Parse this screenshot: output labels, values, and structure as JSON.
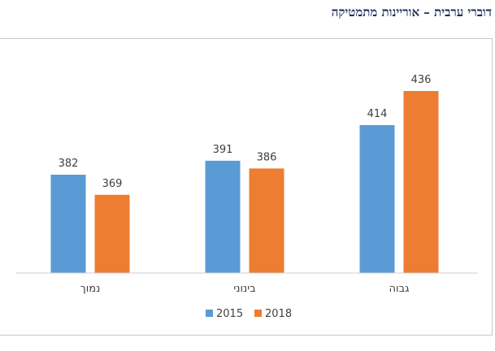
{
  "page_title": "דוברי ערבית – אוריינות מתמטיקה",
  "chart_data": {
    "type": "bar",
    "categories": [
      "נמוך",
      "בינוני",
      "גבוה"
    ],
    "series": [
      {
        "name": "2015",
        "values": [
          382,
          391,
          414
        ],
        "color": "#5b9bd5"
      },
      {
        "name": "2018",
        "values": [
          369,
          386,
          436
        ],
        "color": "#ed7d31"
      }
    ],
    "title": "",
    "xlabel": "",
    "ylabel": "",
    "legend_position": "bottom",
    "grid": false
  }
}
